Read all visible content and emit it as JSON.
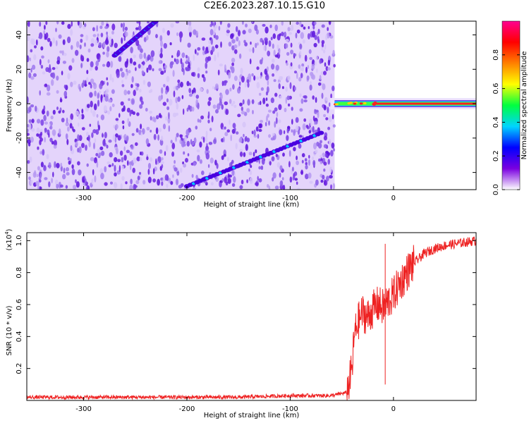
{
  "title": "C2E6.2023.287.10.15.G10",
  "chart_data": [
    {
      "type": "heatmap",
      "xlabel": "Height of straight line (km)",
      "ylabel": "Frequency (Hz)",
      "xlim": [
        -355,
        80
      ],
      "ylim": [
        -50,
        48
      ],
      "xticks": [
        -300,
        -200,
        -100,
        0
      ],
      "yticks": [
        -40,
        -20,
        0,
        20,
        40
      ],
      "noise_region_x": [
        -355,
        -57
      ],
      "features": [
        {
          "name": "upper diagonal trace",
          "x": [
            -270,
            -230
          ],
          "y": [
            28,
            48
          ]
        },
        {
          "name": "lower diagonal trace",
          "x": [
            -200,
            -70
          ],
          "y": [
            -48,
            -17
          ]
        },
        {
          "name": "carrier line",
          "x": [
            -57,
            80
          ],
          "y": [
            0,
            0
          ]
        }
      ],
      "colorbar": {
        "label": "Normalized spectral amplitude",
        "range": [
          0.0,
          1.0
        ],
        "ticks": [
          "0.0",
          "0.2",
          "0.4",
          "0.6",
          "0.8"
        ],
        "colors": [
          "#ffffff",
          "#7a00e0",
          "#0000ff",
          "#00d4ff",
          "#00ff40",
          "#ffff00",
          "#ff8000",
          "#ff0000",
          "#ff0090"
        ]
      }
    },
    {
      "type": "line",
      "xlabel": "Height of straight line (km)",
      "ylabel": "SNR (10 * v/v)",
      "yscale_label": "(x10",
      "yscale_exp": "4",
      "xlim": [
        -355,
        80
      ],
      "ylim": [
        0,
        1.05
      ],
      "xticks": [
        -300,
        -200,
        -100,
        0
      ],
      "yticks": [
        0.2,
        0.4,
        0.6,
        0.8,
        1.0
      ],
      "color": "#ee2222",
      "series": [
        {
          "x": [
            -355,
            -300,
            -250,
            -200,
            -150,
            -100,
            -60,
            -45,
            -40,
            -38,
            -35,
            -30,
            -25,
            -20,
            -15,
            -10,
            -5,
            0,
            5,
            10,
            15,
            20,
            25,
            30,
            40,
            50,
            60,
            70,
            80
          ],
          "values": [
            0.02,
            0.02,
            0.02,
            0.02,
            0.02,
            0.03,
            0.03,
            0.05,
            0.2,
            0.4,
            0.48,
            0.55,
            0.52,
            0.57,
            0.6,
            0.58,
            0.62,
            0.66,
            0.72,
            0.77,
            0.82,
            0.86,
            0.89,
            0.92,
            0.95,
            0.97,
            0.98,
            0.99,
            1.0
          ]
        }
      ]
    }
  ]
}
